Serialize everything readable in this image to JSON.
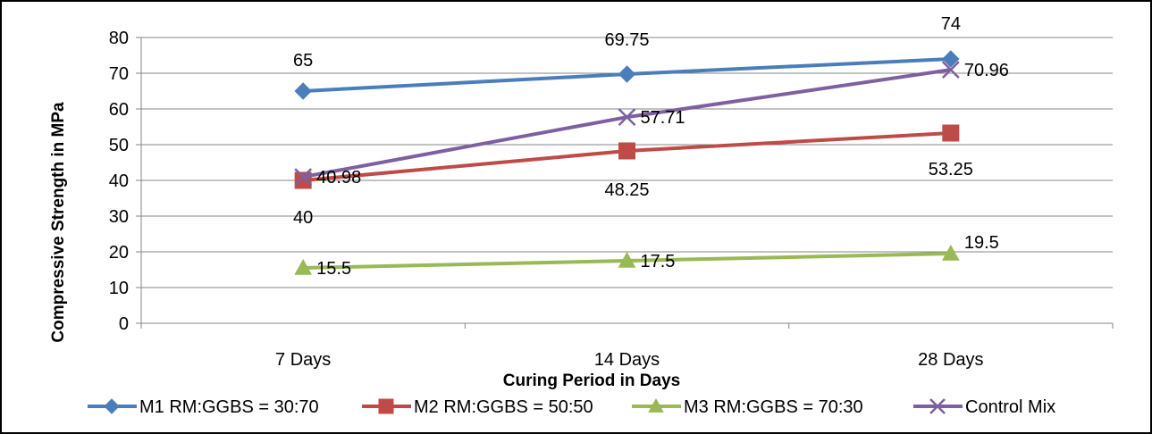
{
  "chart_data": {
    "type": "line",
    "title": "",
    "xlabel": "Curing Period in Days",
    "ylabel": "Compressive Strength in MPa",
    "categories": [
      "7 Days",
      "14 Days",
      "28 Days"
    ],
    "ylim": [
      0,
      80
    ],
    "yticks": [
      "0",
      "10",
      "20",
      "30",
      "40",
      "50",
      "60",
      "70",
      "80"
    ],
    "grid": true,
    "legend_position": "bottom",
    "series": [
      {
        "name": "M1 RM:GGBS = 30:70",
        "values": [
          65,
          69.75,
          74
        ],
        "labels": [
          "65",
          "69.75",
          "74"
        ],
        "color": "#4a7ebb",
        "marker": "diamond"
      },
      {
        "name": "M2 RM:GGBS = 50:50",
        "values": [
          40,
          48.25,
          53.25
        ],
        "labels": [
          "40",
          "48.25",
          "53.25"
        ],
        "color": "#be4b48",
        "marker": "square"
      },
      {
        "name": "M3 RM:GGBS = 70:30",
        "values": [
          15.5,
          17.5,
          19.5
        ],
        "labels": [
          "15.5",
          "17.5",
          "19.5"
        ],
        "color": "#98b954",
        "marker": "triangle"
      },
      {
        "name": "Control Mix",
        "values": [
          40.98,
          57.71,
          70.96
        ],
        "labels": [
          "40.98",
          "57.71",
          "70.96"
        ],
        "color": "#7d60a0",
        "marker": "x"
      }
    ]
  }
}
